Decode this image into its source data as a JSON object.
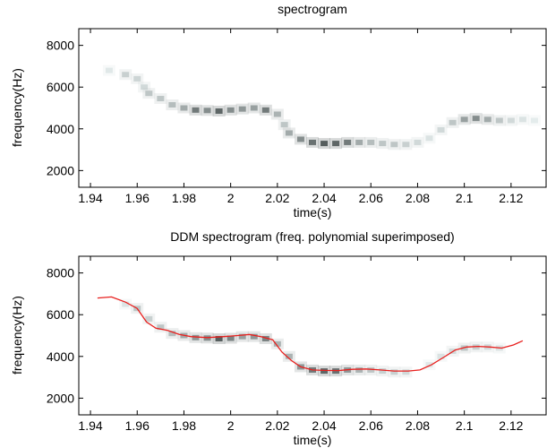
{
  "chart_data": [
    {
      "type": "heatmap",
      "title": "spectrogram",
      "xlabel": "time(s)",
      "ylabel": "frequency(Hz)",
      "xlim": [
        1.935,
        2.135
      ],
      "ylim": [
        1200,
        8800
      ],
      "xticks": [
        1.94,
        1.96,
        1.98,
        2,
        2.02,
        2.04,
        2.06,
        2.08,
        2.1,
        2.12
      ],
      "xtick_labels": [
        "1.94",
        "1.96",
        "1.98",
        "2",
        "2.02",
        "2.04",
        "2.06",
        "2.08",
        "2.1",
        "2.12"
      ],
      "yticks": [
        2000,
        4000,
        6000,
        8000
      ],
      "ytick_labels": [
        "2000",
        "4000",
        "6000",
        "8000"
      ],
      "colormap": "gray-reversed",
      "cells": [
        {
          "t": 1.948,
          "f": 6800,
          "i": 0.12
        },
        {
          "t": 1.955,
          "f": 6600,
          "i": 0.25
        },
        {
          "t": 1.96,
          "f": 6400,
          "i": 0.22
        },
        {
          "t": 1.963,
          "f": 6000,
          "i": 0.2
        },
        {
          "t": 1.965,
          "f": 5700,
          "i": 0.3
        },
        {
          "t": 1.97,
          "f": 5450,
          "i": 0.3
        },
        {
          "t": 1.975,
          "f": 5150,
          "i": 0.35
        },
        {
          "t": 1.98,
          "f": 5000,
          "i": 0.45
        },
        {
          "t": 1.985,
          "f": 4900,
          "i": 0.7
        },
        {
          "t": 1.99,
          "f": 4880,
          "i": 0.6
        },
        {
          "t": 1.995,
          "f": 4850,
          "i": 0.8
        },
        {
          "t": 2.0,
          "f": 4900,
          "i": 0.6
        },
        {
          "t": 2.005,
          "f": 4950,
          "i": 0.55
        },
        {
          "t": 2.01,
          "f": 5000,
          "i": 0.5
        },
        {
          "t": 2.015,
          "f": 4900,
          "i": 0.7
        },
        {
          "t": 2.02,
          "f": 4700,
          "i": 0.4
        },
        {
          "t": 2.023,
          "f": 4200,
          "i": 0.3
        },
        {
          "t": 2.025,
          "f": 3800,
          "i": 0.45
        },
        {
          "t": 2.03,
          "f": 3500,
          "i": 0.6
        },
        {
          "t": 2.035,
          "f": 3350,
          "i": 0.75
        },
        {
          "t": 2.04,
          "f": 3300,
          "i": 0.85
        },
        {
          "t": 2.045,
          "f": 3300,
          "i": 0.8
        },
        {
          "t": 2.05,
          "f": 3350,
          "i": 0.7
        },
        {
          "t": 2.055,
          "f": 3350,
          "i": 0.45
        },
        {
          "t": 2.06,
          "f": 3350,
          "i": 0.35
        },
        {
          "t": 2.065,
          "f": 3300,
          "i": 0.3
        },
        {
          "t": 2.07,
          "f": 3250,
          "i": 0.3
        },
        {
          "t": 2.075,
          "f": 3250,
          "i": 0.25
        },
        {
          "t": 2.08,
          "f": 3350,
          "i": 0.2
        },
        {
          "t": 2.085,
          "f": 3550,
          "i": 0.15
        },
        {
          "t": 2.09,
          "f": 3950,
          "i": 0.2
        },
        {
          "t": 2.095,
          "f": 4300,
          "i": 0.3
        },
        {
          "t": 2.1,
          "f": 4450,
          "i": 0.5
        },
        {
          "t": 2.105,
          "f": 4500,
          "i": 0.6
        },
        {
          "t": 2.11,
          "f": 4450,
          "i": 0.45
        },
        {
          "t": 2.115,
          "f": 4400,
          "i": 0.3
        },
        {
          "t": 2.12,
          "f": 4400,
          "i": 0.2
        },
        {
          "t": 2.125,
          "f": 4450,
          "i": 0.15
        },
        {
          "t": 2.13,
          "f": 4400,
          "i": 0.1
        }
      ]
    },
    {
      "type": "heatmap",
      "title": "DDM spectrogram (freq. polynomial superimposed)",
      "xlabel": "time(s)",
      "ylabel": "frequency(Hz)",
      "xlim": [
        1.935,
        2.135
      ],
      "ylim": [
        1200,
        8800
      ],
      "xticks": [
        1.94,
        1.96,
        1.98,
        2,
        2.02,
        2.04,
        2.06,
        2.08,
        2.1,
        2.12
      ],
      "xtick_labels": [
        "1.94",
        "1.96",
        "1.98",
        "2",
        "2.02",
        "2.04",
        "2.06",
        "2.08",
        "2.1",
        "2.12"
      ],
      "yticks": [
        2000,
        4000,
        6000,
        8000
      ],
      "ytick_labels": [
        "2000",
        "4000",
        "6000",
        "8000"
      ],
      "colormap": "gray-reversed",
      "cells": [
        {
          "t": 1.955,
          "f": 6500,
          "i": 0.15
        },
        {
          "t": 1.96,
          "f": 6300,
          "i": 0.3
        },
        {
          "t": 1.965,
          "f": 5800,
          "i": 0.25
        },
        {
          "t": 1.97,
          "f": 5400,
          "i": 0.3
        },
        {
          "t": 1.975,
          "f": 5100,
          "i": 0.35
        },
        {
          "t": 1.98,
          "f": 5000,
          "i": 0.45
        },
        {
          "t": 1.985,
          "f": 4900,
          "i": 0.55
        },
        {
          "t": 1.99,
          "f": 4880,
          "i": 0.6
        },
        {
          "t": 1.995,
          "f": 4850,
          "i": 0.85
        },
        {
          "t": 2.0,
          "f": 4870,
          "i": 0.65
        },
        {
          "t": 2.005,
          "f": 4950,
          "i": 0.5
        },
        {
          "t": 2.01,
          "f": 4950,
          "i": 0.55
        },
        {
          "t": 2.015,
          "f": 4850,
          "i": 0.65
        },
        {
          "t": 2.02,
          "f": 4600,
          "i": 0.4
        },
        {
          "t": 2.025,
          "f": 4000,
          "i": 0.4
        },
        {
          "t": 2.03,
          "f": 3500,
          "i": 0.55
        },
        {
          "t": 2.035,
          "f": 3350,
          "i": 0.7
        },
        {
          "t": 2.04,
          "f": 3300,
          "i": 0.8
        },
        {
          "t": 2.045,
          "f": 3300,
          "i": 0.75
        },
        {
          "t": 2.05,
          "f": 3350,
          "i": 0.55
        },
        {
          "t": 2.055,
          "f": 3350,
          "i": 0.4
        },
        {
          "t": 2.06,
          "f": 3350,
          "i": 0.3
        },
        {
          "t": 2.065,
          "f": 3300,
          "i": 0.25
        },
        {
          "t": 2.07,
          "f": 3250,
          "i": 0.25
        },
        {
          "t": 2.075,
          "f": 3250,
          "i": 0.2
        },
        {
          "t": 2.085,
          "f": 3600,
          "i": 0.12
        },
        {
          "t": 2.09,
          "f": 4000,
          "i": 0.15
        },
        {
          "t": 2.095,
          "f": 4250,
          "i": 0.2
        },
        {
          "t": 2.1,
          "f": 4400,
          "i": 0.3
        },
        {
          "t": 2.105,
          "f": 4450,
          "i": 0.25
        },
        {
          "t": 2.11,
          "f": 4450,
          "i": 0.2
        },
        {
          "t": 2.115,
          "f": 4400,
          "i": 0.15
        }
      ],
      "series": [
        {
          "color": "#e8201e",
          "x": [
            1.943,
            1.949,
            1.955,
            1.96,
            1.964,
            1.968,
            1.973,
            1.978,
            1.983,
            1.99,
            1.997,
            2.003,
            2.008,
            2.013,
            2.018,
            2.022,
            2.026,
            2.03,
            2.035,
            2.04,
            2.046,
            2.052,
            2.058,
            2.064,
            2.07,
            2.076,
            2.081,
            2.086,
            2.091,
            2.096,
            2.101,
            2.106,
            2.111,
            2.116,
            2.121,
            2.125
          ],
          "y": [
            6800,
            6850,
            6600,
            6300,
            5650,
            5350,
            5250,
            5050,
            4950,
            4900,
            4950,
            5000,
            5050,
            4950,
            4800,
            4200,
            3800,
            3500,
            3350,
            3330,
            3320,
            3380,
            3400,
            3350,
            3300,
            3300,
            3350,
            3600,
            3950,
            4300,
            4450,
            4480,
            4450,
            4400,
            4550,
            4750
          ]
        }
      ]
    }
  ]
}
